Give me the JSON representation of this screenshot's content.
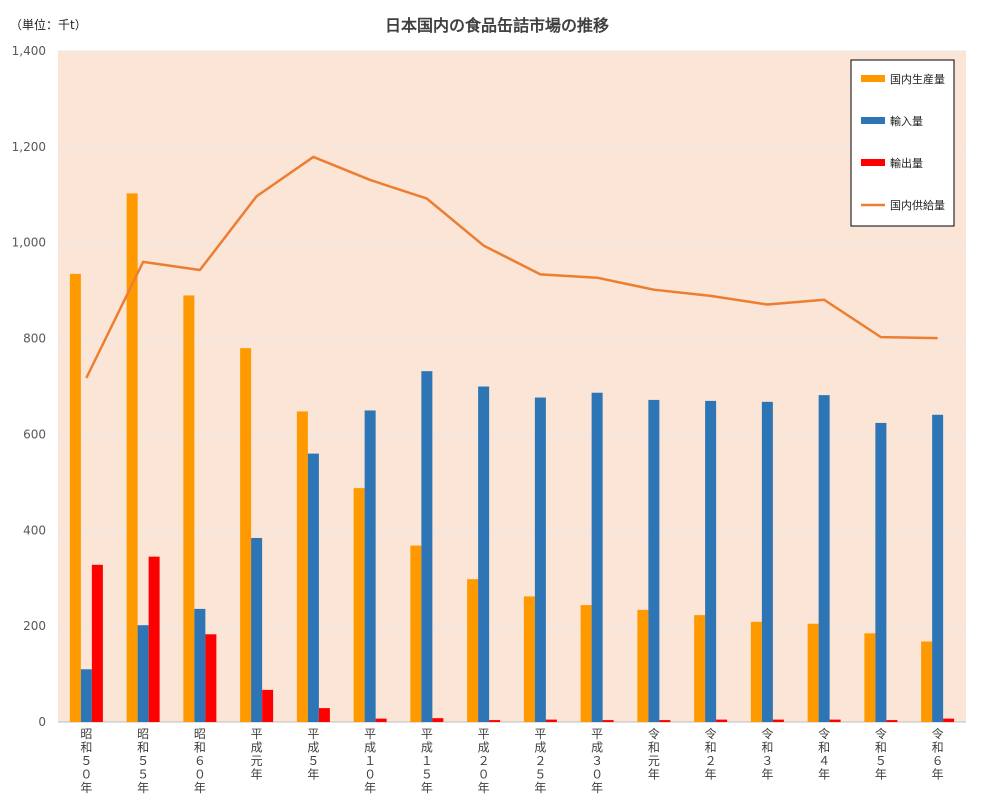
{
  "unit_label": "（単位：千t）",
  "chart_data": {
    "type": "bar",
    "title": "日本国内の食品缶詰市場の推移",
    "xlabel": "",
    "ylabel": "",
    "ylim": [
      0,
      1400
    ],
    "yticks": [
      "0",
      "200",
      "400",
      "600",
      "800",
      "1,000",
      "1,200",
      "1,400"
    ],
    "grid": true,
    "legend_position": "top-right",
    "categories": [
      "昭和５０年",
      "昭和５５年",
      "昭和６０年",
      "平成元年",
      "平成５年",
      "平成１０年",
      "平成１５年",
      "平成２０年",
      "平成２５年",
      "平成３０年",
      "令和元年",
      "令和２年",
      "令和３年",
      "令和４年",
      "令和５年",
      "令和６年"
    ],
    "series": [
      {
        "name": "国内生産量",
        "type": "bar",
        "color": "#FF9900",
        "values": [
          935,
          1103,
          890,
          780,
          648,
          488,
          368,
          298,
          262,
          244,
          234,
          223,
          209,
          205,
          185,
          168
        ]
      },
      {
        "name": "輸入量",
        "type": "bar",
        "color": "#2E75B6",
        "values": [
          110,
          202,
          236,
          384,
          560,
          650,
          732,
          700,
          677,
          687,
          672,
          670,
          668,
          682,
          624,
          641
        ]
      },
      {
        "name": "輸出量",
        "type": "bar",
        "color": "#FF0000",
        "values": [
          328,
          345,
          183,
          67,
          29,
          7,
          8,
          4,
          5,
          4,
          4,
          5,
          5,
          5,
          4,
          7
        ]
      },
      {
        "name": "国内供給量",
        "type": "line",
        "color": "#ED7D31",
        "values": [
          718,
          960,
          943,
          1097,
          1179,
          1131,
          1092,
          994,
          934,
          927,
          902,
          889,
          871,
          881,
          803,
          801
        ]
      }
    ],
    "colors": {
      "plot_background": "#FBE5D6",
      "gridline": "#E8E8E8"
    }
  }
}
